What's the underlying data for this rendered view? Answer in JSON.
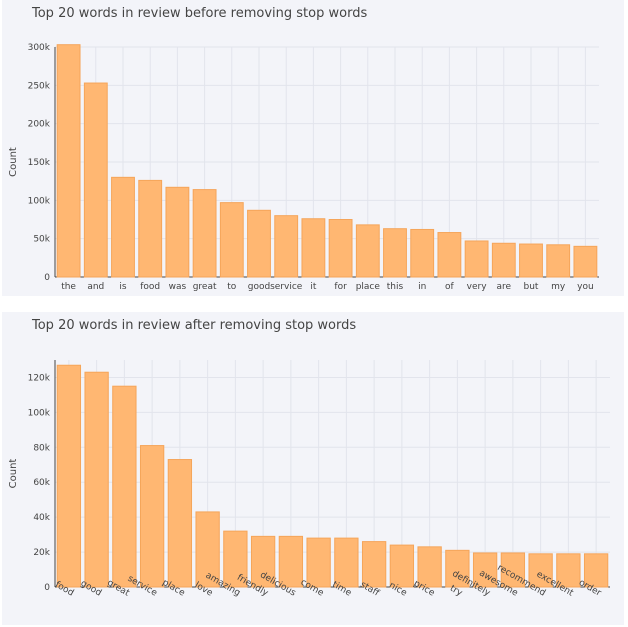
{
  "chart_data": [
    {
      "type": "bar",
      "title": "Top 20 words in review before removing stop words",
      "xlabel": "",
      "ylabel": "Count",
      "ylim": [
        0,
        300000
      ],
      "yticks": [
        0,
        50000,
        100000,
        150000,
        200000,
        250000,
        300000
      ],
      "ytick_labels": [
        "0",
        "50k",
        "100k",
        "150k",
        "200k",
        "250k",
        "300k"
      ],
      "grid": true,
      "bar_color": "#ffb772",
      "bar_edge_color": "#f5a55a",
      "categories": [
        "the",
        "and",
        "is",
        "food",
        "was",
        "great",
        "to",
        "good",
        "service",
        "it",
        "for",
        "place",
        "this",
        "in",
        "of",
        "very",
        "are",
        "but",
        "my",
        "you"
      ],
      "values": [
        303000,
        253000,
        130000,
        126000,
        117000,
        114000,
        97000,
        87000,
        80000,
        76000,
        75000,
        68000,
        63000,
        62000,
        58000,
        47000,
        44000,
        43000,
        42000,
        40000
      ]
    },
    {
      "type": "bar",
      "title": "Top 20 words in review after removing stop words",
      "xlabel": "",
      "ylabel": "Count",
      "ylim": [
        0,
        130000
      ],
      "yticks": [
        0,
        20000,
        40000,
        60000,
        80000,
        100000,
        120000
      ],
      "ytick_labels": [
        "0",
        "20k",
        "40k",
        "60k",
        "80k",
        "100k",
        "120k"
      ],
      "grid": true,
      "bar_color": "#ffb772",
      "bar_edge_color": "#f5a55a",
      "categories": [
        "food",
        "good",
        "great",
        "service",
        "place",
        "love",
        "amazing",
        "friendly",
        "delicious",
        "come",
        "time",
        "staff",
        "nice",
        "price",
        "try",
        "definitely",
        "awesome",
        "recommend",
        "excellent",
        "order"
      ],
      "values": [
        127000,
        123000,
        115000,
        81000,
        73000,
        43000,
        32000,
        29000,
        29000,
        28000,
        28000,
        26000,
        24000,
        23000,
        21000,
        19500,
        19500,
        19000,
        19000,
        19000
      ]
    }
  ]
}
